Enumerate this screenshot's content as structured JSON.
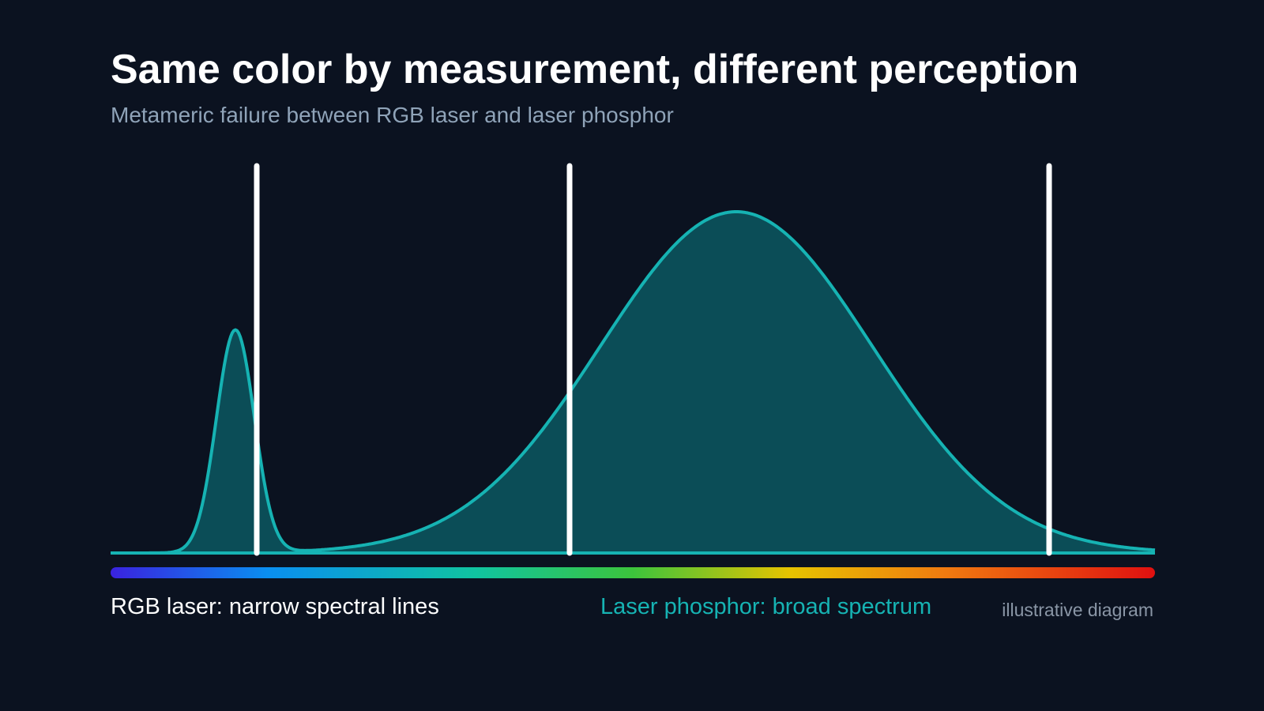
{
  "title": "Same color by measurement, different perception",
  "subtitle": "Metameric failure between RGB laser and laser phosphor",
  "legend": {
    "rgb_laser": "RGB laser: narrow spectral lines",
    "laser_phosphor": "Laser phosphor: broad spectrum"
  },
  "note": "illustrative diagram",
  "colors": {
    "background": "#0b1220",
    "phosphor_curve": "#16b3b3",
    "phosphor_fill": "#0b4d57",
    "laser_lines": "#ffffff",
    "spectrum_bar": [
      "#3a22e0",
      "#0a8ef0",
      "#10c4a0",
      "#3cc43c",
      "#e6c300",
      "#f07a10",
      "#e01010"
    ]
  }
}
